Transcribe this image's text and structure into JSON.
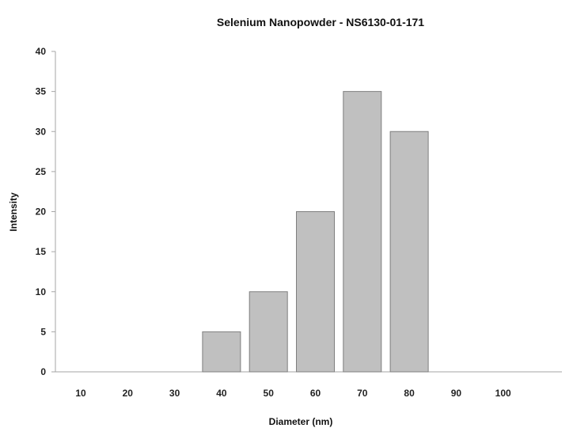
{
  "chart_data": {
    "type": "bar",
    "title": "Selenium Nanopowder - NS6130-01-171",
    "xlabel": "Diameter (nm)",
    "ylabel": "Intensity",
    "categories": [
      "10",
      "20",
      "30",
      "40",
      "50",
      "60",
      "70",
      "80",
      "90",
      "100"
    ],
    "values": [
      0,
      0,
      0,
      5,
      10,
      20,
      35,
      30,
      0,
      0
    ],
    "ylim": [
      0,
      40
    ],
    "yticks": [
      "0",
      "5",
      "10",
      "15",
      "20",
      "25",
      "30",
      "35",
      "40"
    ],
    "grid": false,
    "legend": "none",
    "colors": {
      "bar_fill": "#c0c0c0",
      "bar_stroke": "#7f7f7f",
      "axis": "#a6a6a6"
    }
  }
}
